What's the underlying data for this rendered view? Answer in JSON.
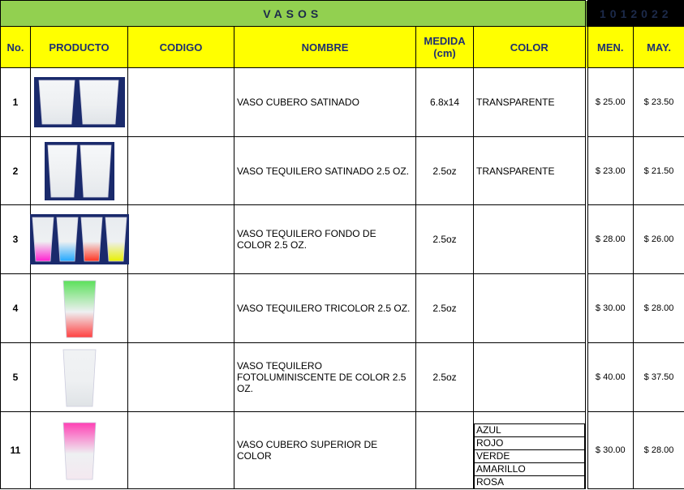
{
  "header": {
    "title": "VASOS",
    "code": "1012022"
  },
  "table": {
    "columns": [
      "No.",
      "PRODUCTO",
      "CODIGO",
      "NOMBRE",
      "MEDIDA (cm)",
      "COLOR",
      "MEN.",
      "MAY."
    ],
    "rows": [
      {
        "no": "1",
        "nombre": "VASO CUBERO SATINADO",
        "medida": "6.8x14",
        "color": [
          "TRANSPARENTE"
        ],
        "men": "$ 25.00",
        "may": "$ 23.50"
      },
      {
        "no": "2",
        "nombre": "VASO TEQUILERO SATINADO 2.5 OZ.",
        "medida": "2.5oz",
        "color": [
          "TRANSPARENTE"
        ],
        "men": "$ 23.00",
        "may": "$ 21.50"
      },
      {
        "no": "3",
        "nombre": "VASO TEQUILERO FONDO DE COLOR 2.5 OZ.",
        "medida": "2.5oz",
        "men": "$ 28.00",
        "may": "$ 26.00"
      },
      {
        "no": "4",
        "nombre": "VASO TEQUILERO TRICOLOR 2.5 OZ.",
        "medida": "2.5oz",
        "men": "$ 30.00",
        "may": "$ 28.00"
      },
      {
        "no": "5",
        "nombre": "VASO TEQUILERO FOTOLUMINISCENTE DE COLOR 2.5 OZ.",
        "medida": "2.5oz",
        "men": "$ 40.00",
        "may": "$ 37.50"
      },
      {
        "no": "11",
        "nombre": "VASO CUBERO SUPERIOR DE COLOR",
        "color": [
          "AZUL",
          "ROJO",
          "VERDE",
          "AMARILLO",
          "ROSA"
        ],
        "men": "$ 30.00",
        "may": "$ 28.00"
      }
    ]
  }
}
